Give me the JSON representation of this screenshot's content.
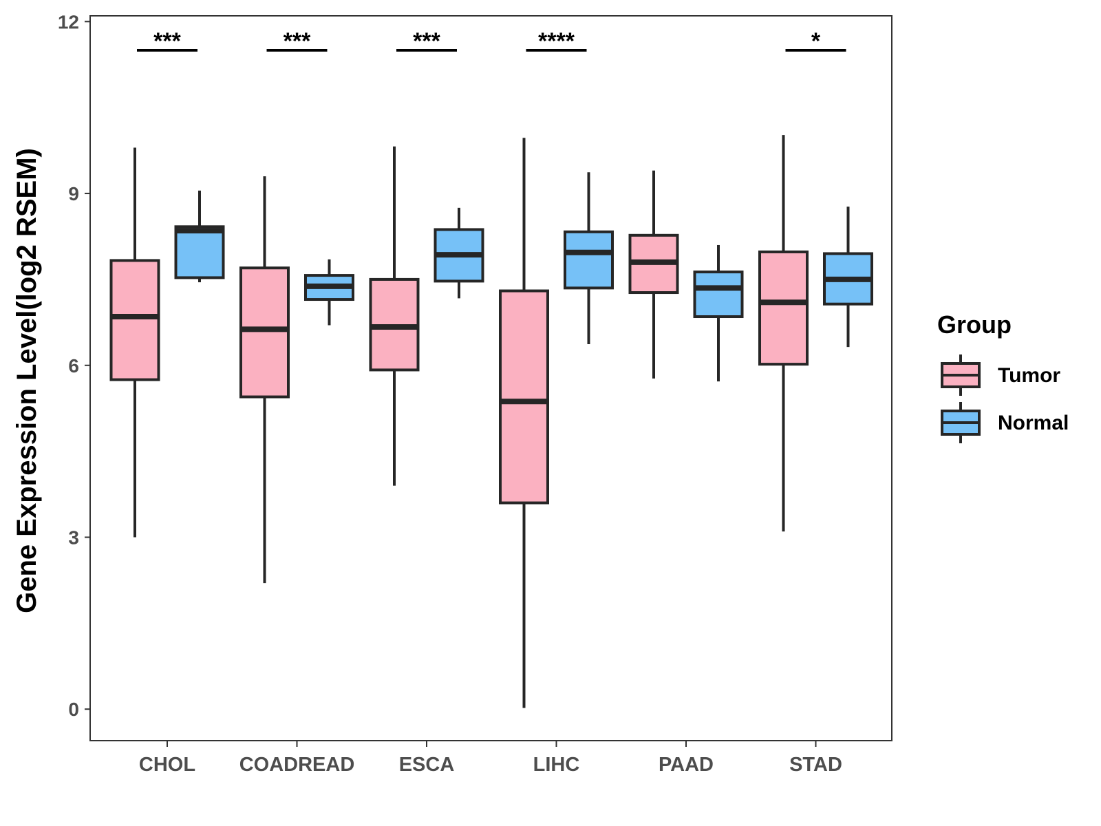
{
  "chart_data": {
    "type": "boxplot",
    "ylabel": "Gene Expression Level(log2 RSEM)",
    "xlabel": "",
    "ylim": [
      -0.55,
      12.1
    ],
    "y_ticks": [
      0,
      3,
      6,
      9,
      12
    ],
    "categories": [
      "CHOL",
      "COADREAD",
      "ESCA",
      "LIHC",
      "PAAD",
      "STAD"
    ],
    "legend": {
      "title": "Group",
      "position": "right",
      "entries": [
        {
          "name": "Tumor",
          "color": "#fbb1c1"
        },
        {
          "name": "Normal",
          "color": "#76c1f7"
        }
      ]
    },
    "series": [
      {
        "name": "Tumor",
        "color": "#fbb1c1",
        "boxes": [
          {
            "min": 3.0,
            "q1": 5.75,
            "median": 6.85,
            "q3": 7.83,
            "max": 9.8
          },
          {
            "min": 2.2,
            "q1": 5.45,
            "median": 6.63,
            "q3": 7.7,
            "max": 9.3
          },
          {
            "min": 3.9,
            "q1": 5.92,
            "median": 6.67,
            "q3": 7.5,
            "max": 9.82
          },
          {
            "min": 0.02,
            "q1": 3.6,
            "median": 5.37,
            "q3": 7.3,
            "max": 9.97
          },
          {
            "min": 5.77,
            "q1": 7.27,
            "median": 7.8,
            "q3": 8.27,
            "max": 9.4
          },
          {
            "min": 3.1,
            "q1": 6.02,
            "median": 7.1,
            "q3": 7.98,
            "max": 10.02
          }
        ]
      },
      {
        "name": "Normal",
        "color": "#76c1f7",
        "boxes": [
          {
            "min": 7.45,
            "q1": 7.53,
            "median": 8.35,
            "q3": 8.42,
            "max": 9.05
          },
          {
            "min": 6.7,
            "q1": 7.15,
            "median": 7.38,
            "q3": 7.57,
            "max": 7.85
          },
          {
            "min": 7.17,
            "q1": 7.47,
            "median": 7.93,
            "q3": 8.37,
            "max": 8.75
          },
          {
            "min": 6.37,
            "q1": 7.35,
            "median": 7.97,
            "q3": 8.33,
            "max": 9.37
          },
          {
            "min": 5.72,
            "q1": 6.85,
            "median": 7.35,
            "q3": 7.63,
            "max": 8.1
          },
          {
            "min": 6.32,
            "q1": 7.07,
            "median": 7.5,
            "q3": 7.95,
            "max": 8.77
          }
        ]
      }
    ],
    "significance": [
      {
        "category": "CHOL",
        "label": "***"
      },
      {
        "category": "COADREAD",
        "label": "***"
      },
      {
        "category": "ESCA",
        "label": "***"
      },
      {
        "category": "LIHC",
        "label": "****"
      },
      {
        "category": "STAD",
        "label": "*"
      }
    ],
    "significance_bar_y": 11.5
  }
}
